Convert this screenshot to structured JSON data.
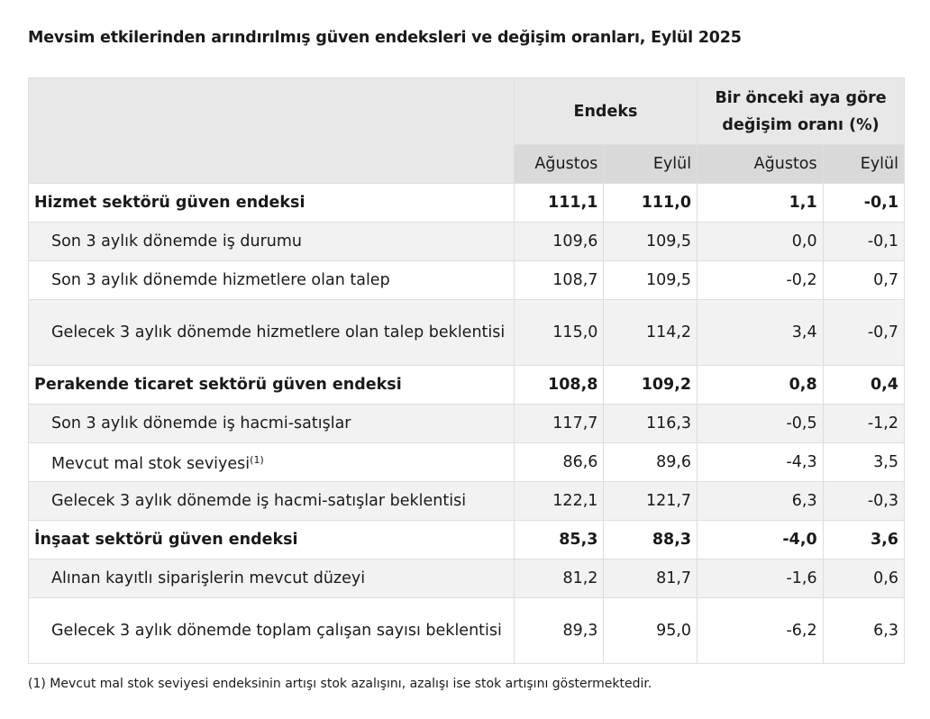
{
  "title": "Mevsim etkilerinden arındırılmış güven endeksleri ve değişim oranları, Eylül 2025",
  "header": {
    "group1": "Endeks",
    "group2_line1": "Bir önceki aya göre",
    "group2_line2": "değişim oranı (%)",
    "sub": [
      "Ağustos",
      "Eylül",
      "Ağustos",
      "Eylül"
    ]
  },
  "rows": [
    {
      "label": "Hizmet sektörü güven endeksi",
      "values": [
        "111,1",
        "111,0",
        "1,1",
        "-0,1"
      ],
      "bold": true
    },
    {
      "label": "Son 3 aylık dönemde iş durumu",
      "values": [
        "109,6",
        "109,5",
        "0,0",
        "-0,1"
      ]
    },
    {
      "label": "Son 3 aylık dönemde hizmetlere olan talep",
      "values": [
        "108,7",
        "109,5",
        "-0,2",
        "0,7"
      ]
    },
    {
      "label": "Gelecek 3 aylık dönemde hizmetlere olan talep beklentisi",
      "values": [
        "115,0",
        "114,2",
        "3,4",
        "-0,7"
      ]
    },
    {
      "label": "Perakende ticaret sektörü güven endeksi",
      "values": [
        "108,8",
        "109,2",
        "0,8",
        "0,4"
      ],
      "bold": true
    },
    {
      "label": "Son 3 aylık dönemde iş hacmi-satışlar",
      "values": [
        "117,7",
        "116,3",
        "-0,5",
        "-1,2"
      ]
    },
    {
      "label": "Mevcut mal stok seviyesi",
      "footnote": "(1)",
      "values": [
        "86,6",
        "89,6",
        "-4,3",
        "3,5"
      ]
    },
    {
      "label": "Gelecek 3 aylık dönemde iş hacmi-satışlar beklentisi",
      "values": [
        "122,1",
        "121,7",
        "6,3",
        "-0,3"
      ]
    },
    {
      "label": "İnşaat sektörü güven endeksi",
      "values": [
        "85,3",
        "88,3",
        "-4,0",
        "3,6"
      ],
      "bold": true
    },
    {
      "label": "Alınan kayıtlı siparişlerin mevcut düzeyi",
      "values": [
        "81,2",
        "81,7",
        "-1,6",
        "0,6"
      ]
    },
    {
      "label": "Gelecek 3 aylık dönemde toplam çalışan sayısı beklentisi",
      "values": [
        "89,3",
        "95,0",
        "-6,2",
        "6,3"
      ]
    }
  ],
  "note": "(1) Mevcut mal stok seviyesi endeksinin artışı stok azalışını, azalışı ise stok artışını göstermektedir.",
  "chart_data": {
    "type": "table",
    "title": "Mevsim etkilerinden arındırılmış güven endeksleri ve değişim oranları, Eylül 2025",
    "columns": [
      "Endeks Ağustos",
      "Endeks Eylül",
      "Değişim oranı (%) Ağustos",
      "Değişim oranı (%) Eylül"
    ],
    "rows": [
      {
        "label": "Hizmet sektörü güven endeksi",
        "values": [
          111.1,
          111.0,
          1.1,
          -0.1
        ]
      },
      {
        "label": "Son 3 aylık dönemde iş durumu",
        "values": [
          109.6,
          109.5,
          0.0,
          -0.1
        ]
      },
      {
        "label": "Son 3 aylık dönemde hizmetlere olan talep",
        "values": [
          108.7,
          109.5,
          -0.2,
          0.7
        ]
      },
      {
        "label": "Gelecek 3 aylık dönemde hizmetlere olan talep beklentisi",
        "values": [
          115.0,
          114.2,
          3.4,
          -0.7
        ]
      },
      {
        "label": "Perakende ticaret sektörü güven endeksi",
        "values": [
          108.8,
          109.2,
          0.8,
          0.4
        ]
      },
      {
        "label": "Son 3 aylık dönemde iş hacmi-satışlar",
        "values": [
          117.7,
          116.3,
          -0.5,
          -1.2
        ]
      },
      {
        "label": "Mevcut mal stok seviyesi",
        "values": [
          86.6,
          89.6,
          -4.3,
          3.5
        ]
      },
      {
        "label": "Gelecek 3 aylık dönemde iş hacmi-satışlar beklentisi",
        "values": [
          122.1,
          121.7,
          6.3,
          -0.3
        ]
      },
      {
        "label": "İnşaat sektörü güven endeksi",
        "values": [
          85.3,
          88.3,
          -4.0,
          3.6
        ]
      },
      {
        "label": "Alınan kayıtlı siparişlerin mevcut düzeyi",
        "values": [
          81.2,
          81.7,
          -1.6,
          0.6
        ]
      },
      {
        "label": "Gelecek 3 aylık dönemde toplam çalışan sayısı beklentisi",
        "values": [
          89.3,
          95.0,
          -6.2,
          6.3
        ]
      }
    ]
  }
}
